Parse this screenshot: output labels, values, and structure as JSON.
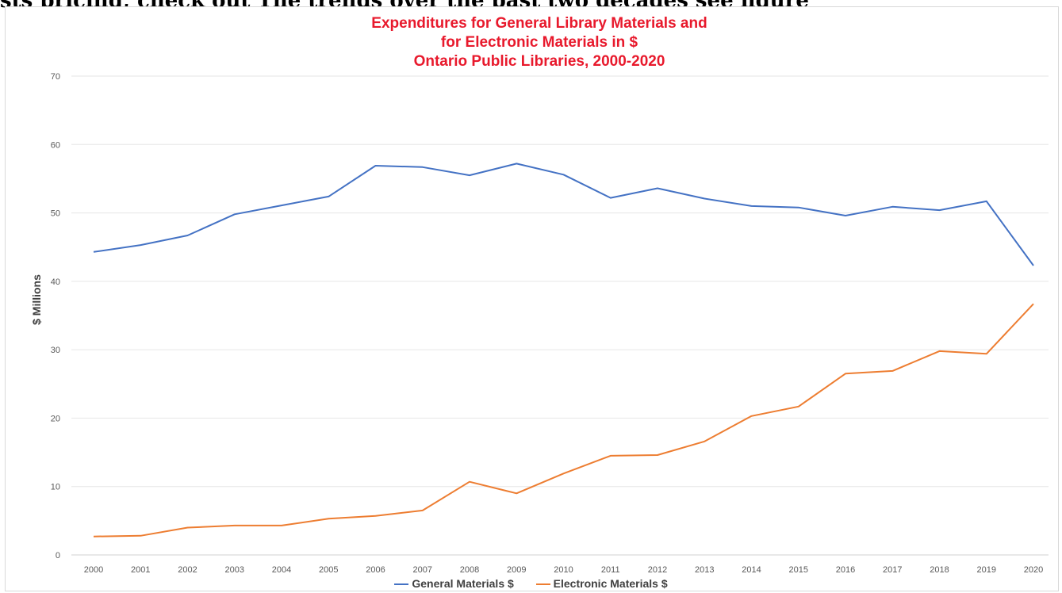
{
  "header_text": "sts pricing, check out The trends over the past two decades see figure",
  "colors": {
    "general": "#4472c4",
    "electronic": "#ed7d31",
    "title": "#e8192c",
    "grid": "#e6e6e6"
  },
  "chart_data": {
    "type": "line",
    "title_lines": [
      "Expenditures for General Library Materials and",
      "for Electronic Materials in $",
      "Ontario Public Libraries, 2000-2020"
    ],
    "xlabel": "",
    "ylabel": "$ Millions",
    "ylim": [
      0,
      70
    ],
    "yticks": [
      0,
      10,
      20,
      30,
      40,
      50,
      60,
      70
    ],
    "grid": true,
    "legend_position": "bottom",
    "x": [
      "2000",
      "2001",
      "2002",
      "2003",
      "2004",
      "2005",
      "2006",
      "2007",
      "2008",
      "2009",
      "2010",
      "2011",
      "2012",
      "2013",
      "2014",
      "2015",
      "2016",
      "2017",
      "2018",
      "2019",
      "2020"
    ],
    "series": [
      {
        "name": "General Materials $",
        "color": "#4472c4",
        "values": [
          44.3,
          45.3,
          46.7,
          49.8,
          51.1,
          52.4,
          56.9,
          56.7,
          55.5,
          57.2,
          55.6,
          52.2,
          53.6,
          52.1,
          51.0,
          50.8,
          49.6,
          50.9,
          50.4,
          51.7,
          42.3
        ]
      },
      {
        "name": "Electronic Materials $",
        "color": "#ed7d31",
        "values": [
          2.7,
          2.8,
          4.0,
          4.3,
          4.3,
          5.3,
          5.7,
          6.5,
          10.7,
          9.0,
          11.9,
          14.5,
          14.6,
          16.6,
          20.3,
          21.7,
          26.5,
          26.9,
          29.8,
          29.4,
          36.7
        ]
      }
    ]
  }
}
